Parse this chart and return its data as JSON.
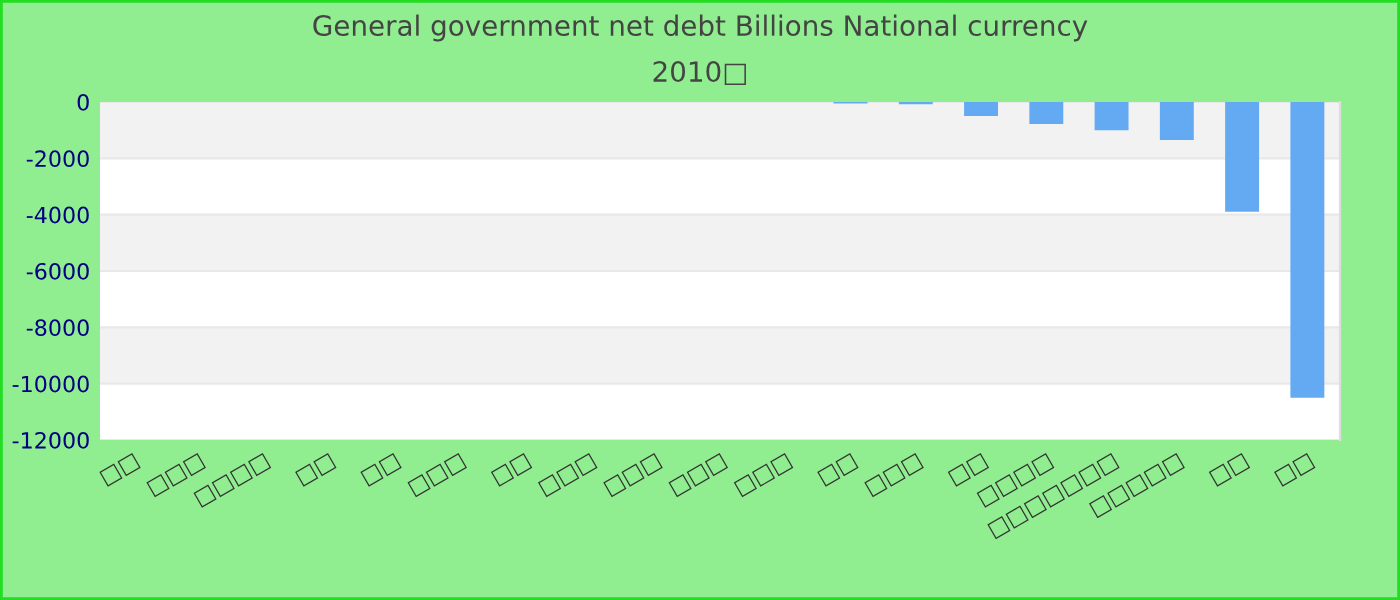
{
  "chart_data": {
    "type": "bar",
    "title": "General government net debt Billions National currency",
    "subtitle": "2010□",
    "categories": [
      "□□",
      "□□□",
      "□□□□",
      "□□",
      "□□",
      "□□□",
      "□□",
      "□□□",
      "□□□",
      "□□□",
      "□□□",
      "□□",
      "□□□",
      "□□",
      "□□□□",
      "□□□□□□□",
      "□□□□□",
      "□□",
      "□□"
    ],
    "values": [
      0,
      0,
      0,
      0,
      0,
      0,
      0,
      0,
      0,
      0,
      0,
      -50,
      -80,
      -500,
      -780,
      -1000,
      -1350,
      -3900,
      -10500
    ],
    "color": "#64aaf2",
    "ylim": [
      -12000,
      0
    ],
    "yticks": [
      -12000,
      -10000,
      -8000,
      -6000,
      -4000,
      -2000,
      0
    ],
    "grid": "y"
  }
}
